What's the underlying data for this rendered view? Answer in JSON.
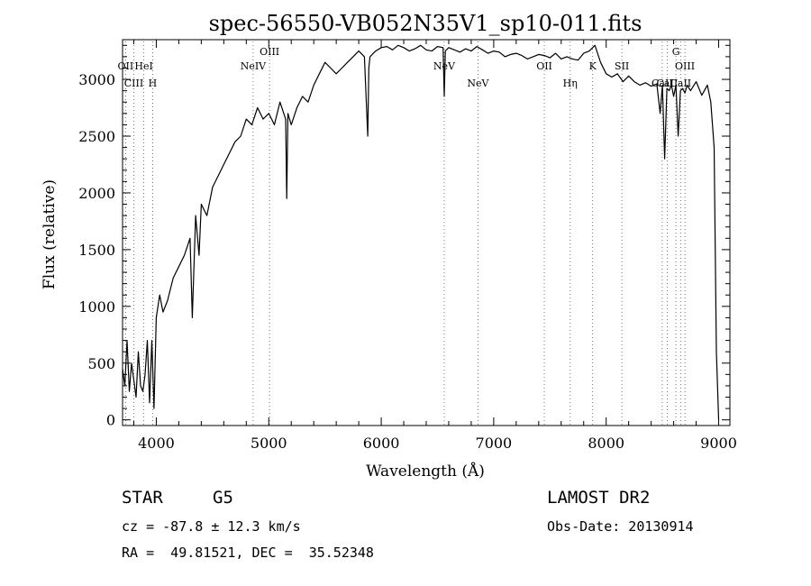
{
  "chart_data": {
    "type": "line",
    "title": "spec-56550-VB052N35V1_sp10-011.fits",
    "xlabel": "Wavelength (Å)",
    "ylabel": "Flux (relative)",
    "xlim": [
      3700,
      9100
    ],
    "ylim": [
      -50,
      3350
    ],
    "xticks": [
      4000,
      5000,
      6000,
      7000,
      8000,
      9000
    ],
    "yticks": [
      0,
      500,
      1000,
      1500,
      2000,
      2500,
      3000
    ],
    "x_minor_step": 200,
    "y_minor_step": 100,
    "spectrum": {
      "name": "flux",
      "x": [
        3700,
        3720,
        3740,
        3760,
        3780,
        3800,
        3820,
        3840,
        3860,
        3880,
        3900,
        3920,
        3940,
        3960,
        3980,
        4000,
        4030,
        4060,
        4100,
        4150,
        4200,
        4250,
        4300,
        4320,
        4350,
        4380,
        4400,
        4450,
        4500,
        4550,
        4600,
        4650,
        4700,
        4750,
        4800,
        4850,
        4900,
        4950,
        5000,
        5050,
        5100,
        5150,
        5160,
        5170,
        5200,
        5250,
        5300,
        5350,
        5400,
        5450,
        5500,
        5550,
        5600,
        5650,
        5700,
        5750,
        5800,
        5850,
        5880,
        5890,
        5900,
        5950,
        6000,
        6050,
        6100,
        6150,
        6200,
        6250,
        6300,
        6350,
        6400,
        6450,
        6500,
        6550,
        6560,
        6570,
        6600,
        6650,
        6700,
        6750,
        6800,
        6850,
        6900,
        6950,
        7000,
        7050,
        7100,
        7150,
        7200,
        7250,
        7300,
        7350,
        7400,
        7450,
        7500,
        7550,
        7600,
        7650,
        7700,
        7750,
        7800,
        7850,
        7900,
        7950,
        8000,
        8050,
        8100,
        8150,
        8200,
        8250,
        8300,
        8350,
        8400,
        8450,
        8480,
        8500,
        8520,
        8540,
        8560,
        8580,
        8600,
        8620,
        8640,
        8660,
        8680,
        8700,
        8720,
        8750,
        8800,
        8850,
        8900,
        8930,
        8960,
        8980,
        9000
      ],
      "values": [
        450,
        300,
        700,
        250,
        500,
        350,
        200,
        600,
        300,
        250,
        400,
        700,
        150,
        700,
        100,
        900,
        1100,
        950,
        1050,
        1250,
        1350,
        1450,
        1600,
        900,
        1800,
        1450,
        1900,
        1800,
        2050,
        2150,
        2250,
        2350,
        2450,
        2500,
        2650,
        2600,
        2750,
        2650,
        2700,
        2600,
        2800,
        2650,
        1950,
        2700,
        2600,
        2750,
        2850,
        2800,
        2950,
        3050,
        3150,
        3100,
        3050,
        3100,
        3150,
        3200,
        3250,
        3200,
        2500,
        3100,
        3200,
        3250,
        3280,
        3290,
        3260,
        3300,
        3280,
        3250,
        3270,
        3300,
        3260,
        3250,
        3290,
        3280,
        2850,
        3250,
        3280,
        3260,
        3240,
        3270,
        3250,
        3290,
        3260,
        3230,
        3250,
        3240,
        3200,
        3220,
        3230,
        3210,
        3180,
        3200,
        3220,
        3210,
        3190,
        3230,
        3180,
        3200,
        3180,
        3170,
        3230,
        3250,
        3300,
        3150,
        3050,
        3020,
        3050,
        2980,
        3030,
        2980,
        2950,
        2970,
        2940,
        2960,
        2700,
        2950,
        2300,
        2920,
        2900,
        2950,
        2850,
        2950,
        2500,
        2900,
        2920,
        2880,
        2950,
        2900,
        2980,
        2860,
        2950,
        2800,
        2400,
        600,
        0
      ]
    },
    "lines": [
      {
        "label": "OII",
        "x": 3727,
        "row": "top"
      },
      {
        "label": "HeI",
        "x": 3889,
        "row": "top"
      },
      {
        "label": "OIII",
        "x": 5007,
        "row": "top2"
      },
      {
        "label": "NeIV",
        "x": 4861,
        "row": "mid"
      },
      {
        "label": "CIII",
        "x": 3800,
        "row": "low"
      },
      {
        "label": "H",
        "x": 3968,
        "row": "low"
      },
      {
        "label": "NeV",
        "x": 6560,
        "row": "top"
      },
      {
        "label": "NeV",
        "x": 6860,
        "row": "low"
      },
      {
        "label": "OII",
        "x": 7450,
        "row": "top"
      },
      {
        "label": "Hη",
        "x": 7680,
        "row": "low"
      },
      {
        "label": "K",
        "x": 7880,
        "row": "top"
      },
      {
        "label": "SII",
        "x": 8140,
        "row": "mid"
      },
      {
        "label": "CaII",
        "x": 8498,
        "row": "low"
      },
      {
        "label": "CaII",
        "x": 8542,
        "row": "low"
      },
      {
        "label": "G",
        "x": 8620,
        "row": "top2"
      },
      {
        "label": "OIII",
        "x": 8700,
        "row": "mid"
      },
      {
        "label": "CaII",
        "x": 8662,
        "row": "low"
      }
    ]
  },
  "info": {
    "object_type": "STAR",
    "subclass": "G5",
    "survey": "LAMOST DR2",
    "cz": "cz = -87.8 ± 12.3 km/s",
    "obs_date": "Obs-Date: 20130914",
    "coords": "RA =  49.81521, DEC =  35.52348"
  }
}
